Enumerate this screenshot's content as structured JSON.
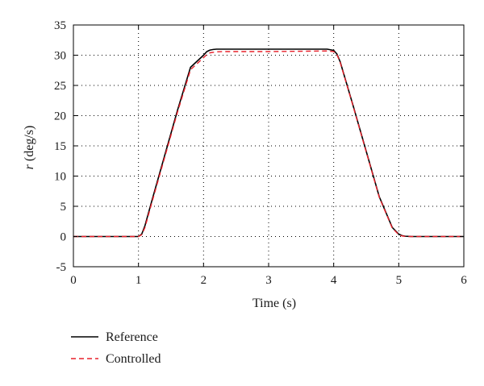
{
  "chart_data": {
    "type": "line",
    "xlabel": "Time (s)",
    "ylabel_var": "r",
    "ylabel_unit": " (deg/s)",
    "xlim": [
      0,
      6
    ],
    "ylim": [
      -5,
      35
    ],
    "xticks": [
      0,
      1,
      2,
      3,
      4,
      5,
      6
    ],
    "yticks": [
      -5,
      0,
      5,
      10,
      15,
      20,
      25,
      30,
      35
    ],
    "grid": true,
    "legend_position": "below plot, left",
    "series": [
      {
        "name": "Reference",
        "color": "#000000",
        "dash": "solid",
        "x": [
          0,
          1.0,
          1.05,
          1.1,
          1.2,
          1.4,
          1.6,
          1.8,
          2.0,
          2.05,
          2.1,
          2.15,
          2.2,
          2.3,
          3.0,
          3.9,
          4.0,
          4.05,
          4.1,
          4.3,
          4.5,
          4.7,
          4.9,
          5.0,
          5.05,
          5.1,
          5.2,
          6.0
        ],
        "y": [
          0,
          0,
          0.4,
          1.8,
          5.7,
          13.3,
          20.9,
          28.0,
          30.0,
          30.6,
          30.85,
          30.95,
          31.0,
          31.0,
          31.0,
          31.0,
          30.8,
          30.2,
          28.9,
          21.6,
          14.1,
          6.6,
          1.5,
          0.4,
          0.15,
          0.05,
          0,
          0
        ]
      },
      {
        "name": "Controlled",
        "color": "#e8202a",
        "dash": "dashed",
        "x": [
          0,
          1.0,
          1.05,
          1.1,
          1.2,
          1.4,
          1.6,
          1.8,
          2.0,
          2.05,
          2.1,
          2.2,
          2.3,
          3.0,
          3.9,
          4.0,
          4.05,
          4.1,
          4.3,
          4.5,
          4.7,
          4.9,
          5.0,
          5.05,
          5.1,
          5.2,
          6.0
        ],
        "y": [
          0,
          0,
          0.3,
          1.5,
          5.4,
          13.0,
          20.6,
          27.6,
          29.6,
          30.1,
          30.4,
          30.55,
          30.6,
          30.6,
          30.7,
          30.6,
          30.1,
          28.8,
          21.5,
          14.0,
          6.5,
          1.4,
          0.3,
          0.1,
          0.03,
          0,
          0
        ]
      }
    ]
  }
}
